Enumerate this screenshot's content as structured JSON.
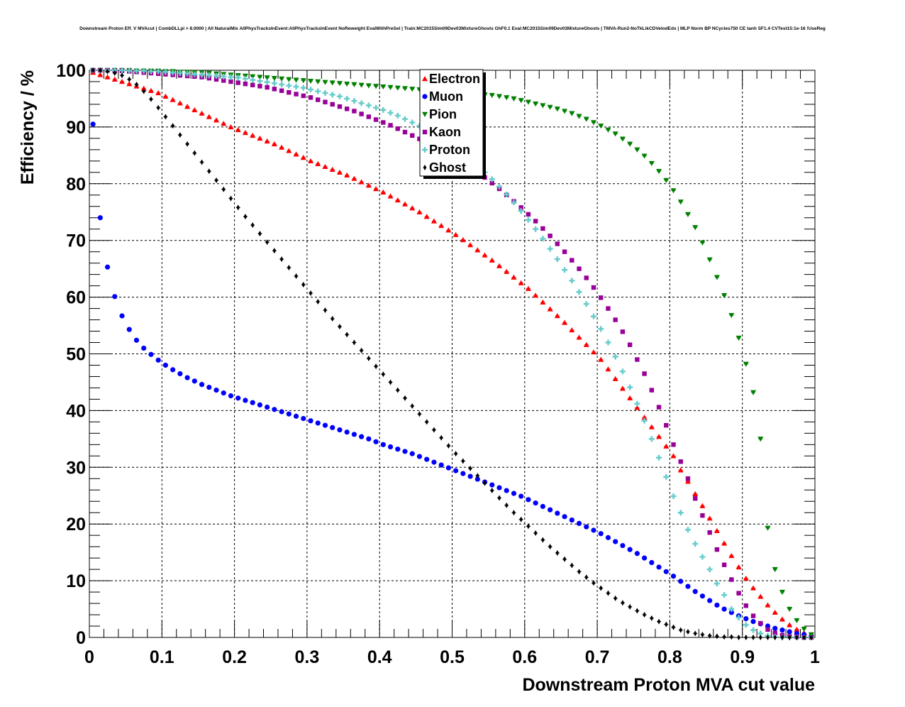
{
  "chart_data": {
    "type": "scatter",
    "title": "Downstream Proton Eff. V MVAcut | CombDLLpi > 8.0000 | All NaturalMix AllPhysTracksInEvent:AllPhysTracksInEvent NoReweight EvalWithPreSel | Train:MC2015Sim09Dev03MixtureGhosts GhF0.1 Eval:MC2015Sim09Dev03MixtureGhosts | TMVA-Run2-NoTkLikCDVelodEdx | MLP Norm BP NCycles750 CE tanh SF1.4 CVTest15:1e-16 !UseReg",
    "xlabel": "Downstream Proton MVA cut value",
    "ylabel": "Efficiency / %",
    "xlim": [
      0,
      1
    ],
    "ylim": [
      0,
      100
    ],
    "xticks": [
      "0",
      "0.1",
      "0.2",
      "0.3",
      "0.4",
      "0.5",
      "0.6",
      "0.7",
      "0.8",
      "0.9",
      "1"
    ],
    "yticks": [
      "0",
      "10",
      "20",
      "30",
      "40",
      "50",
      "60",
      "70",
      "80",
      "90",
      "100"
    ],
    "grid": true,
    "legend_position": "top-center",
    "x_start": 0.005,
    "x_step": 0.01,
    "series": [
      {
        "name": "Electron",
        "color": "#ff0000",
        "marker": "triangle-up",
        "values": [
          99.6,
          99.2,
          98.8,
          98.4,
          98.0,
          97.6,
          97.2,
          96.8,
          96.4,
          96.0,
          95.4,
          94.8,
          94.2,
          93.6,
          93.0,
          92.4,
          91.8,
          91.2,
          90.6,
          90.0,
          89.5,
          89.0,
          88.5,
          88.0,
          87.5,
          87.0,
          86.4,
          85.8,
          85.2,
          84.6,
          84.0,
          83.5,
          83.0,
          82.5,
          82.0,
          81.5,
          80.9,
          80.3,
          79.7,
          79.1,
          78.5,
          77.8,
          77.1,
          76.4,
          75.7,
          75.0,
          74.2,
          73.4,
          72.6,
          71.8,
          71.0,
          70.1,
          69.2,
          68.3,
          67.4,
          66.5,
          65.5,
          64.5,
          63.5,
          62.5,
          61.5,
          60.3,
          59.1,
          57.9,
          56.7,
          55.5,
          54.2,
          52.9,
          51.6,
          50.3,
          49.0,
          47.3,
          45.6,
          43.9,
          42.2,
          40.5,
          38.8,
          37.1,
          35.4,
          33.7,
          32.0,
          29.5,
          27.5,
          25.3,
          23.2,
          21.0,
          18.8,
          16.6,
          14.4,
          12.4,
          10.4,
          8.7,
          7.2,
          5.7,
          4.4,
          3.2,
          2.2,
          1.4,
          0.8,
          0.3
        ]
      },
      {
        "name": "Muon",
        "color": "#0000ff",
        "marker": "circle",
        "values": [
          90.5,
          74.0,
          65.3,
          60.1,
          56.7,
          54.3,
          52.4,
          51.0,
          49.9,
          48.9,
          48.0,
          47.2,
          46.5,
          45.8,
          45.2,
          44.6,
          44.1,
          43.6,
          43.1,
          42.6,
          42.2,
          41.8,
          41.4,
          41.0,
          40.6,
          40.2,
          39.8,
          39.4,
          39.0,
          38.6,
          38.2,
          37.8,
          37.4,
          37.0,
          36.6,
          36.2,
          35.8,
          35.4,
          35.0,
          34.5,
          34.0,
          33.6,
          33.2,
          32.8,
          32.4,
          31.9,
          31.4,
          30.9,
          30.4,
          29.9,
          29.4,
          28.9,
          28.4,
          27.9,
          27.4,
          26.9,
          26.4,
          25.9,
          25.4,
          24.9,
          24.3,
          23.7,
          23.1,
          22.5,
          21.9,
          21.3,
          20.7,
          20.1,
          19.5,
          18.9,
          18.3,
          17.6,
          16.9,
          16.2,
          15.5,
          14.8,
          14.0,
          13.2,
          12.4,
          11.6,
          10.8,
          9.9,
          9.0,
          8.1,
          7.3,
          6.5,
          5.7,
          5.0,
          4.4,
          3.8,
          3.3,
          2.8,
          2.4,
          2.0,
          1.6,
          1.3,
          1.0,
          0.7,
          0.5,
          0.3
        ]
      },
      {
        "name": "Pion",
        "color": "#008000",
        "marker": "triangle-down",
        "values": [
          100.0,
          100.0,
          100.0,
          100.0,
          100.0,
          100.0,
          99.9,
          99.9,
          99.9,
          99.9,
          99.8,
          99.8,
          99.7,
          99.7,
          99.6,
          99.6,
          99.5,
          99.4,
          99.3,
          99.2,
          99.1,
          99.0,
          98.9,
          98.8,
          98.7,
          98.6,
          98.5,
          98.4,
          98.3,
          98.2,
          98.1,
          98.0,
          97.9,
          97.8,
          97.7,
          97.6,
          97.5,
          97.4,
          97.3,
          97.2,
          97.1,
          97.0,
          96.9,
          96.8,
          96.7,
          96.6,
          96.5,
          96.4,
          96.3,
          96.2,
          96.1,
          96.0,
          95.9,
          95.8,
          95.7,
          95.6,
          95.4,
          95.2,
          95.0,
          94.7,
          94.4,
          94.1,
          93.8,
          93.5,
          93.2,
          92.8,
          92.4,
          91.9,
          91.4,
          90.8,
          90.2,
          89.5,
          88.8,
          87.9,
          87.0,
          86.0,
          84.9,
          83.6,
          82.2,
          80.6,
          78.8,
          76.8,
          74.6,
          72.3,
          69.6,
          66.6,
          63.5,
          60.3,
          56.8,
          52.8,
          48.2,
          43.2,
          35.0,
          19.3,
          12.0,
          8.0,
          5.0,
          3.0,
          1.5,
          0.5
        ]
      },
      {
        "name": "Kaon",
        "color": "#990099",
        "marker": "square",
        "values": [
          100.0,
          100.0,
          100.0,
          99.9,
          99.9,
          99.8,
          99.7,
          99.6,
          99.5,
          99.4,
          99.3,
          99.2,
          99.1,
          99.0,
          98.9,
          98.8,
          98.6,
          98.4,
          98.2,
          98.0,
          97.8,
          97.6,
          97.4,
          97.2,
          97.0,
          96.7,
          96.4,
          96.1,
          95.8,
          95.5,
          95.2,
          94.8,
          94.4,
          94.0,
          93.6,
          93.2,
          92.8,
          92.3,
          91.8,
          91.3,
          90.8,
          90.3,
          89.7,
          89.1,
          88.5,
          87.9,
          87.3,
          86.6,
          85.9,
          85.2,
          84.5,
          83.7,
          82.9,
          82.0,
          81.1,
          80.1,
          79.1,
          78.0,
          76.9,
          75.8,
          74.6,
          73.4,
          72.1,
          70.8,
          69.4,
          68.0,
          66.5,
          65.0,
          63.4,
          61.7,
          59.9,
          58.0,
          56.0,
          53.9,
          51.6,
          49.0,
          46.5,
          43.6,
          40.6,
          37.4,
          34.0,
          31.0,
          28.0,
          24.5,
          21.5,
          18.5,
          15.5,
          12.8,
          10.2,
          7.8,
          5.6,
          3.8,
          2.5,
          1.4,
          0.8,
          0.4,
          0.2,
          0.1,
          0.0,
          0.0
        ]
      },
      {
        "name": "Proton",
        "color": "#66cccc",
        "marker": "cross",
        "values": [
          100.0,
          100.0,
          100.0,
          100.0,
          100.0,
          99.9,
          99.9,
          99.9,
          99.8,
          99.8,
          99.7,
          99.6,
          99.5,
          99.4,
          99.3,
          99.2,
          99.1,
          99.0,
          98.9,
          98.8,
          98.7,
          98.5,
          98.3,
          98.1,
          97.9,
          97.7,
          97.5,
          97.3,
          97.1,
          96.9,
          96.6,
          96.3,
          96.0,
          95.7,
          95.4,
          95.0,
          94.6,
          94.2,
          93.8,
          93.4,
          93.0,
          92.5,
          92.0,
          91.4,
          90.8,
          90.2,
          89.5,
          88.8,
          88.0,
          87.2,
          86.3,
          85.3,
          84.3,
          83.2,
          82.0,
          80.8,
          79.5,
          78.1,
          76.7,
          75.2,
          73.6,
          72.0,
          70.3,
          68.5,
          66.7,
          64.8,
          62.9,
          60.9,
          58.8,
          56.6,
          54.4,
          52.0,
          49.5,
          46.9,
          44.1,
          41.2,
          38.2,
          35.0,
          31.7,
          28.3,
          24.9,
          22.0,
          19.0,
          16.5,
          14.2,
          12.0,
          9.5,
          7.5,
          5.0,
          3.5,
          2.2,
          1.3,
          0.7,
          0.3,
          0.1,
          0.0,
          0.0,
          0.0,
          0.0,
          0.0
        ]
      },
      {
        "name": "Ghost",
        "color": "#000000",
        "marker": "diamond",
        "values": [
          100.0,
          100.0,
          99.8,
          99.5,
          99.1,
          98.4,
          97.5,
          96.3,
          94.9,
          93.4,
          91.8,
          90.2,
          88.6,
          87.0,
          85.4,
          83.8,
          82.2,
          80.6,
          79.0,
          77.4,
          75.8,
          74.2,
          72.7,
          71.2,
          69.7,
          68.2,
          66.7,
          65.2,
          63.7,
          62.2,
          60.7,
          59.2,
          57.7,
          56.2,
          54.8,
          53.4,
          52.0,
          50.6,
          49.2,
          47.8,
          46.4,
          45.0,
          43.6,
          42.2,
          40.8,
          39.4,
          38.0,
          36.6,
          35.2,
          33.8,
          32.4,
          31.1,
          29.8,
          28.5,
          27.2,
          25.9,
          24.6,
          23.3,
          22.0,
          20.8,
          19.6,
          18.4,
          17.2,
          16.0,
          14.9,
          13.8,
          12.7,
          11.6,
          10.6,
          9.6,
          8.7,
          7.8,
          6.9,
          6.1,
          5.4,
          4.7,
          4.0,
          3.4,
          2.8,
          2.3,
          1.8,
          1.3,
          1.0,
          0.7,
          0.5,
          0.3,
          0.2,
          0.1,
          0.1,
          0.0,
          0.0,
          0.0,
          0.0,
          0.0,
          0.0,
          0.0,
          0.0,
          0.0,
          0.0,
          0.0
        ]
      }
    ]
  }
}
